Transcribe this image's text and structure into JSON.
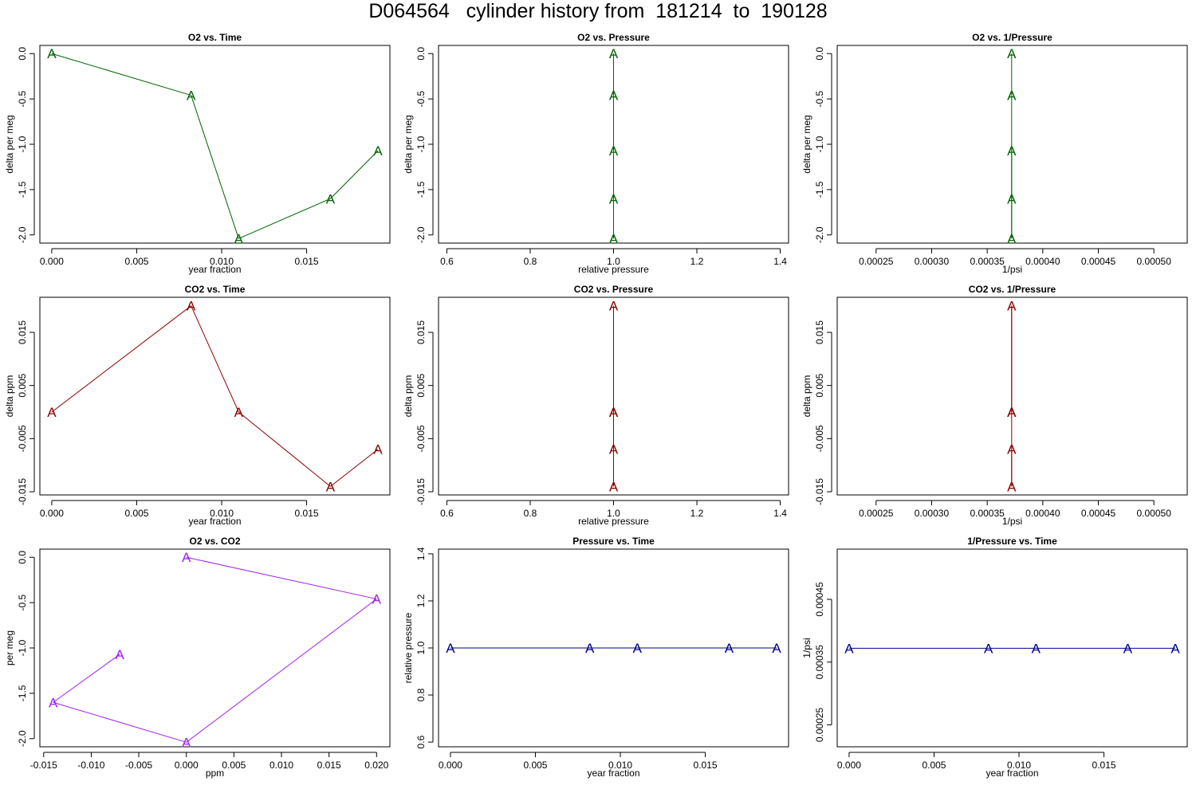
{
  "title": "D064564   cylinder history from  181214  to  190128",
  "colors": {
    "o2": "#006400",
    "co2": "#8b0000",
    "o2co2": "#a020f0",
    "pressure": "#00008b"
  },
  "chart_data": [
    {
      "type": "line",
      "title": "O2 vs. Time",
      "xlabel": "year fraction",
      "ylabel": "delta per meg",
      "xlim": [
        -0.0007,
        0.0199
      ],
      "ylim": [
        -2.09,
        0.09
      ],
      "xticks": [
        0.0,
        0.005,
        0.01,
        0.015
      ],
      "xtick_labels": [
        "0.000",
        "0.005",
        "0.010",
        "0.015"
      ],
      "yticks": [
        0.0,
        -0.5,
        -1.0,
        -1.5,
        -2.0
      ],
      "ytick_labels": [
        "0.0",
        "-0.5",
        "-1.0",
        "-1.5",
        "-2.0"
      ],
      "series": [
        {
          "marker": "A",
          "color": "#006400",
          "x": [
            0.0,
            0.0082,
            0.011,
            0.0164,
            0.0192
          ],
          "y": [
            0.0,
            -0.46,
            -2.04,
            -1.6,
            -1.07
          ]
        }
      ]
    },
    {
      "type": "line",
      "title": "O2 vs. Pressure",
      "xlabel": "relative pressure",
      "ylabel": "delta per meg",
      "xlim": [
        0.58,
        1.42
      ],
      "ylim": [
        -2.09,
        0.09
      ],
      "xticks": [
        0.6,
        0.8,
        1.0,
        1.2,
        1.4
      ],
      "xtick_labels": [
        "0.6",
        "0.8",
        "1.0",
        "1.2",
        "1.4"
      ],
      "yticks": [
        0.0,
        -0.5,
        -1.0,
        -1.5,
        -2.0
      ],
      "ytick_labels": [
        "0.0",
        "-0.5",
        "-1.0",
        "-1.5",
        "-2.0"
      ],
      "series": [
        {
          "marker": "A",
          "color": "#006400",
          "x": [
            1.0,
            1.0,
            1.0,
            1.0,
            1.0
          ],
          "y": [
            0.0,
            -0.46,
            -2.04,
            -1.6,
            -1.07
          ]
        }
      ]
    },
    {
      "type": "line",
      "title": "O2 vs. 1/Pressure",
      "xlabel": "1/psi",
      "ylabel": "delta per meg",
      "xlim": [
        0.000215,
        0.00053
      ],
      "ylim": [
        -2.09,
        0.09
      ],
      "xticks": [
        0.00025,
        0.0003,
        0.00035,
        0.0004,
        0.00045,
        0.0005
      ],
      "xtick_labels": [
        "0.00025",
        "0.00030",
        "0.00035",
        "0.00040",
        "0.00045",
        "0.00050"
      ],
      "yticks": [
        0.0,
        -0.5,
        -1.0,
        -1.5,
        -2.0
      ],
      "ytick_labels": [
        "0.0",
        "-0.5",
        "-1.0",
        "-1.5",
        "-2.0"
      ],
      "series": [
        {
          "marker": "A",
          "color": "#006400",
          "x": [
            0.000372,
            0.000372,
            0.000372,
            0.000372,
            0.000372
          ],
          "y": [
            0.0,
            -0.46,
            -2.04,
            -1.6,
            -1.07
          ]
        }
      ]
    },
    {
      "type": "line",
      "title": "CO2 vs. Time",
      "xlabel": "year fraction",
      "ylabel": "delta ppm",
      "xlim": [
        -0.0007,
        0.0199
      ],
      "ylim": [
        -0.0156,
        0.0216
      ],
      "xticks": [
        0.0,
        0.005,
        0.01,
        0.015
      ],
      "xtick_labels": [
        "0.000",
        "0.005",
        "0.010",
        "0.015"
      ],
      "yticks": [
        0.015,
        0.005,
        -0.005,
        -0.015
      ],
      "ytick_labels": [
        "0.015",
        "0.005",
        "-0.005",
        "-0.015"
      ],
      "series": [
        {
          "marker": "A",
          "color": "#8b0000",
          "x": [
            0.0,
            0.0082,
            0.011,
            0.0164,
            0.0192
          ],
          "y": [
            0.0,
            0.02,
            0.0,
            -0.014,
            -0.007
          ]
        }
      ]
    },
    {
      "type": "line",
      "title": "CO2 vs. Pressure",
      "xlabel": "relative pressure",
      "ylabel": "delta ppm",
      "xlim": [
        0.58,
        1.42
      ],
      "ylim": [
        -0.0156,
        0.0216
      ],
      "xticks": [
        0.6,
        0.8,
        1.0,
        1.2,
        1.4
      ],
      "xtick_labels": [
        "0.6",
        "0.8",
        "1.0",
        "1.2",
        "1.4"
      ],
      "yticks": [
        0.015,
        0.005,
        -0.005,
        -0.015
      ],
      "ytick_labels": [
        "0.015",
        "0.005",
        "-0.005",
        "-0.015"
      ],
      "series": [
        {
          "marker": "A",
          "color": "#8b0000",
          "x": [
            1.0,
            1.0,
            1.0,
            1.0,
            1.0
          ],
          "y": [
            0.0,
            0.02,
            0.0,
            -0.014,
            -0.007
          ]
        }
      ]
    },
    {
      "type": "line",
      "title": "CO2 vs. 1/Pressure",
      "xlabel": "1/psi",
      "ylabel": "delta ppm",
      "xlim": [
        0.000215,
        0.00053
      ],
      "ylim": [
        -0.0156,
        0.0216
      ],
      "xticks": [
        0.00025,
        0.0003,
        0.00035,
        0.0004,
        0.00045,
        0.0005
      ],
      "xtick_labels": [
        "0.00025",
        "0.00030",
        "0.00035",
        "0.00040",
        "0.00045",
        "0.00050"
      ],
      "yticks": [
        0.015,
        0.005,
        -0.005,
        -0.015
      ],
      "ytick_labels": [
        "0.015",
        "0.005",
        "-0.005",
        "-0.015"
      ],
      "series": [
        {
          "marker": "A",
          "color": "#8b0000",
          "x": [
            0.000372,
            0.000372,
            0.000372,
            0.000372,
            0.000372
          ],
          "y": [
            0.0,
            0.02,
            0.0,
            -0.014,
            -0.007
          ]
        }
      ]
    },
    {
      "type": "line",
      "title": "O2 vs. CO2",
      "xlabel": "ppm",
      "ylabel": "per meg",
      "xlim": [
        -0.0154,
        0.0214
      ],
      "ylim": [
        -2.09,
        0.09
      ],
      "xticks": [
        -0.015,
        -0.01,
        -0.005,
        0.0,
        0.005,
        0.01,
        0.015,
        0.02
      ],
      "xtick_labels": [
        "-0.015",
        "-0.010",
        "-0.005",
        "0.000",
        "0.005",
        "0.010",
        "0.015",
        "0.020"
      ],
      "yticks": [
        0.0,
        -0.5,
        -1.0,
        -1.5,
        -2.0
      ],
      "ytick_labels": [
        "0.0",
        "-0.5",
        "-1.0",
        "-1.5",
        "-2.0"
      ],
      "series": [
        {
          "marker": "A",
          "color": "#a020f0",
          "x": [
            0.0,
            0.02,
            0.0,
            -0.014,
            -0.007
          ],
          "y": [
            0.0,
            -0.46,
            -2.04,
            -1.6,
            -1.07
          ]
        }
      ]
    },
    {
      "type": "line",
      "title": "Pressure vs. Time",
      "xlabel": "year fraction",
      "ylabel": "relative pressure",
      "xlim": [
        -0.0007,
        0.0199
      ],
      "ylim": [
        0.58,
        1.42
      ],
      "xticks": [
        0.0,
        0.005,
        0.01,
        0.015
      ],
      "xtick_labels": [
        "0.000",
        "0.005",
        "0.010",
        "0.015"
      ],
      "yticks": [
        0.6,
        0.8,
        1.0,
        1.2,
        1.4
      ],
      "ytick_labels": [
        "0.6",
        "0.8",
        "1.0",
        "1.2",
        "1.4"
      ],
      "series": [
        {
          "marker": "A",
          "color": "#00008b",
          "x": [
            0.0,
            0.0082,
            0.011,
            0.0164,
            0.0192
          ],
          "y": [
            1.0,
            1.0,
            1.0,
            1.0,
            1.0
          ]
        }
      ]
    },
    {
      "type": "line",
      "title": "1/Pressure vs. Time",
      "xlabel": "year fraction",
      "ylabel": "1/psi",
      "xlim": [
        -0.0007,
        0.0199
      ],
      "ylim": [
        0.000215,
        0.00053
      ],
      "xticks": [
        0.0,
        0.005,
        0.01,
        0.015
      ],
      "xtick_labels": [
        "0.000",
        "0.005",
        "0.010",
        "0.015"
      ],
      "yticks": [
        0.00025,
        0.00035,
        0.00045
      ],
      "ytick_labels": [
        "0.00025",
        "0.00035",
        "0.00045"
      ],
      "series": [
        {
          "marker": "A",
          "color": "#00008b",
          "x": [
            0.0,
            0.0082,
            0.011,
            0.0164,
            0.0192
          ],
          "y": [
            0.000372,
            0.000372,
            0.000372,
            0.000372,
            0.000372
          ]
        }
      ]
    }
  ]
}
